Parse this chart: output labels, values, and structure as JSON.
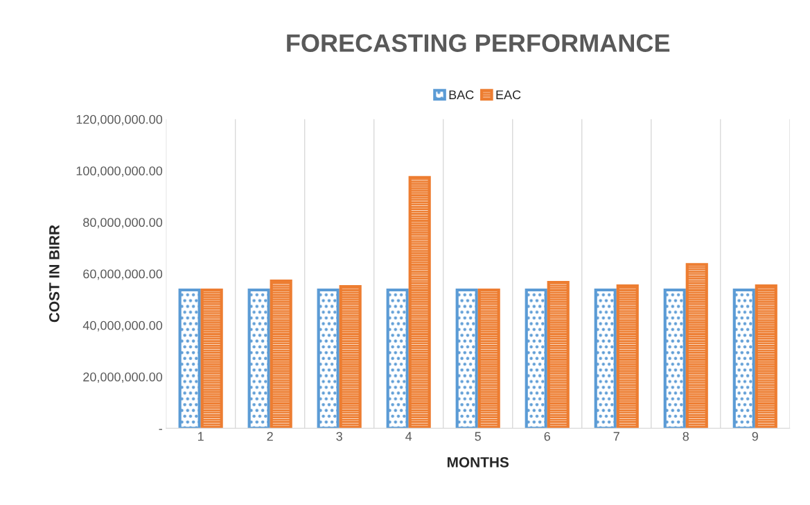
{
  "chart_data": {
    "type": "bar",
    "title": "FORECASTING PERFORMANCE",
    "xlabel": "MONTHS",
    "ylabel": "COST IN BIRR",
    "categories": [
      "1",
      "2",
      "3",
      "4",
      "5",
      "6",
      "7",
      "8",
      "9"
    ],
    "series": [
      {
        "name": "BAC",
        "color": "#5b9bd5",
        "values": [
          53700000,
          53700000,
          53700000,
          53700000,
          53700000,
          53700000,
          53700000,
          53700000,
          53700000
        ]
      },
      {
        "name": "EAC",
        "color": "#ed7d31",
        "values": [
          53700000,
          57200000,
          55000000,
          97400000,
          53700000,
          56600000,
          55300000,
          63600000,
          55300000
        ]
      }
    ],
    "ylim": [
      0,
      120000000
    ],
    "yticks": [
      {
        "value": 0,
        "label": "-"
      },
      {
        "value": 20000000,
        "label": "20,000,000.00"
      },
      {
        "value": 40000000,
        "label": "40,000,000.00"
      },
      {
        "value": 60000000,
        "label": "60,000,000.00"
      },
      {
        "value": 80000000,
        "label": "80,000,000.00"
      },
      {
        "value": 100000000,
        "label": "100,000,000.00"
      },
      {
        "value": 120000000,
        "label": "120,000,000.00"
      }
    ],
    "grid": "x",
    "legend": "top"
  }
}
